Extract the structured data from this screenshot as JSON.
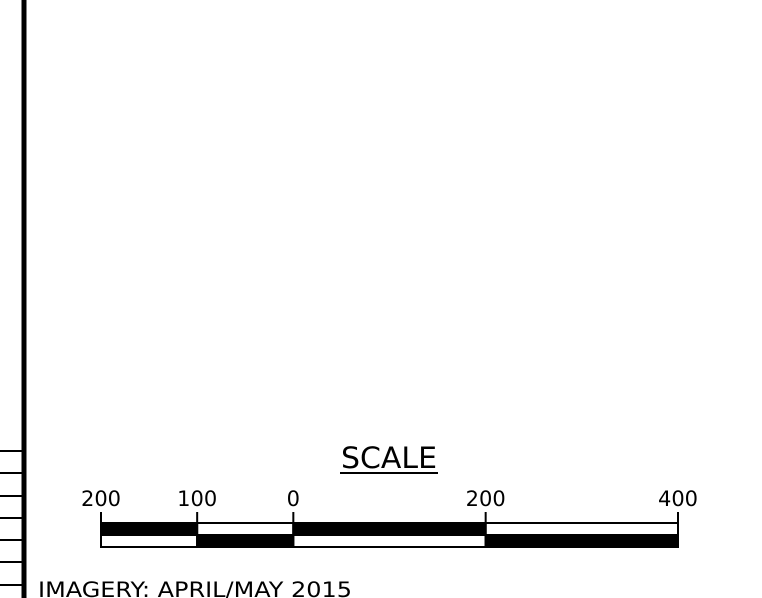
{
  "scale_bar": {
    "title": "SCALE",
    "tick_labels": [
      "200",
      "100",
      "0",
      "200",
      "400"
    ],
    "tick_values": [
      -200,
      -100,
      0,
      200,
      400
    ],
    "segments": [
      {
        "from": -200,
        "to": -100,
        "top_fill": "black",
        "bottom_fill": "white"
      },
      {
        "from": -100,
        "to": 0,
        "top_fill": "white",
        "bottom_fill": "black"
      },
      {
        "from": 0,
        "to": 200,
        "top_fill": "black",
        "bottom_fill": "white"
      },
      {
        "from": 200,
        "to": 400,
        "top_fill": "white",
        "bottom_fill": "black"
      }
    ]
  },
  "imagery_note": "IMAGERY:  APRIL/MAY  2015",
  "colors": {
    "ink": "#000000",
    "paper": "#ffffff"
  }
}
